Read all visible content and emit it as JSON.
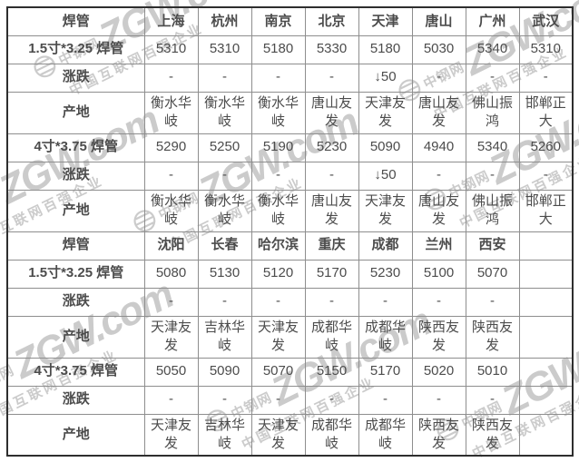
{
  "watermark": {
    "logo_text": "中钢网",
    "brand": "ZGW.com",
    "slogan": "中国互联网百强企业"
  },
  "colors": {
    "section_title_red": "#ff0000",
    "city_link_blue": "#0000ee",
    "change_green": "#008000",
    "value_gray": "#4c4c4c",
    "watermark_gray": "#cbcbcb",
    "border_inner": "#8e8e8e",
    "border_outer": "#2e2e2e"
  },
  "table": {
    "sections": [
      {
        "header": {
          "label": "焊管",
          "cities": [
            "上海",
            "杭州",
            "南京",
            "北京",
            "天津",
            "唐山",
            "广州",
            "武汉"
          ]
        },
        "rows": [
          {
            "type": "price",
            "label": "1.5寸*3.25 焊管",
            "values": [
              "5310",
              "5310",
              "5180",
              "5330",
              "5180",
              "5030",
              "5340",
              "5310"
            ]
          },
          {
            "type": "change",
            "label": "涨跌",
            "values": [
              "-",
              "-",
              "-",
              "-",
              "↓50",
              "-",
              "-",
              "-"
            ]
          },
          {
            "type": "origin",
            "label": "产地",
            "values": [
              "衡水华岐",
              "衡水华岐",
              "衡水华岐",
              "唐山友发",
              "天津友发",
              "唐山友发",
              "佛山振鸿",
              "邯郸正大"
            ]
          },
          {
            "type": "price",
            "label": "4寸*3.75 焊管",
            "values": [
              "5290",
              "5250",
              "5190",
              "5230",
              "5090",
              "4940",
              "5340",
              "5260"
            ]
          },
          {
            "type": "change",
            "label": "涨跌",
            "values": [
              "-",
              "-",
              "-",
              "-",
              "↓50",
              "-",
              "-",
              "-"
            ]
          },
          {
            "type": "origin",
            "label": "产地",
            "values": [
              "衡水华岐",
              "衡水华岐",
              "衡水华岐",
              "唐山友发",
              "天津友发",
              "唐山友发",
              "佛山振鸿",
              "邯郸正大"
            ]
          }
        ]
      },
      {
        "header": {
          "label": "焊管",
          "cities": [
            "沈阳",
            "长春",
            "哈尔滨",
            "重庆",
            "成都",
            "兰州",
            "西安",
            ""
          ]
        },
        "rows": [
          {
            "type": "price",
            "label": "1.5寸*3.25 焊管",
            "values": [
              "5080",
              "5130",
              "5120",
              "5170",
              "5230",
              "5100",
              "5070",
              ""
            ]
          },
          {
            "type": "change",
            "label": "涨跌",
            "values": [
              "-",
              "-",
              "-",
              "-",
              "-",
              "-",
              "-",
              ""
            ]
          },
          {
            "type": "origin",
            "label": "产地",
            "values": [
              "天津友发",
              "吉林华岐",
              "天津友发",
              "成都华岐",
              "成都华岐",
              "陕西友发",
              "陕西友发",
              ""
            ]
          },
          {
            "type": "price",
            "label": "4寸*3.75 焊管",
            "values": [
              "5050",
              "5090",
              "5070",
              "5150",
              "5170",
              "5020",
              "5010",
              ""
            ]
          },
          {
            "type": "change",
            "label": "涨跌",
            "values": [
              "-",
              "-",
              "-",
              "-",
              "-",
              "-",
              "-",
              ""
            ]
          },
          {
            "type": "origin",
            "label": "产地",
            "values": [
              "天津友发",
              "吉林华岐",
              "天津友发",
              "成都华岐",
              "成都华岐",
              "陕西友发",
              "陕西友发",
              ""
            ]
          }
        ]
      }
    ]
  }
}
